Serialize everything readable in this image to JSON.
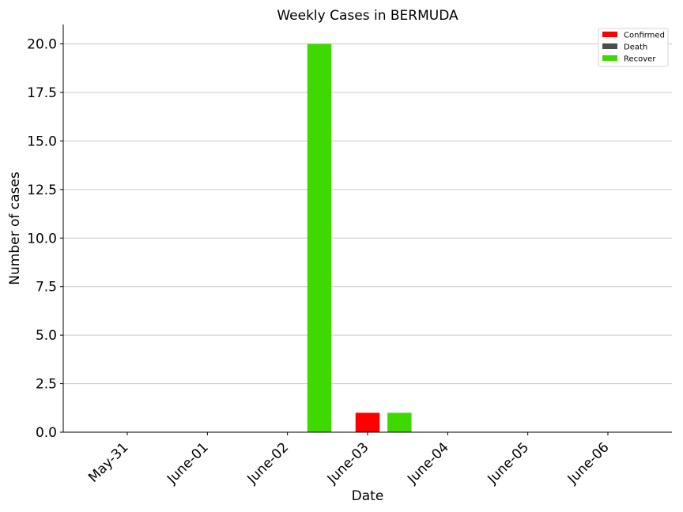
{
  "chart_data": {
    "type": "bar",
    "title": "Weekly Cases in BERMUDA",
    "xlabel": "Date",
    "ylabel": "Number of cases",
    "categories": [
      "May-31",
      "June-01",
      "June-02",
      "June-03",
      "June-04",
      "June-05",
      "June-06"
    ],
    "series": [
      {
        "name": "Confirmed",
        "color": "#ff0000",
        "values": [
          0,
          0,
          0,
          1,
          0,
          0,
          0
        ]
      },
      {
        "name": "Death",
        "color": "#4d4d4d",
        "values": [
          0,
          0,
          0,
          0,
          0,
          0,
          0
        ]
      },
      {
        "name": "Recover",
        "color": "#3dd900",
        "values": [
          0,
          0,
          0,
          20,
          1,
          0,
          0
        ]
      }
    ],
    "ylim": [
      0,
      21
    ],
    "yticks": [
      "0.0",
      "2.5",
      "5.0",
      "7.5",
      "10.0",
      "12.5",
      "15.0",
      "17.5",
      "20.0"
    ],
    "grid": "horizontal",
    "legend_position": "top-right"
  }
}
